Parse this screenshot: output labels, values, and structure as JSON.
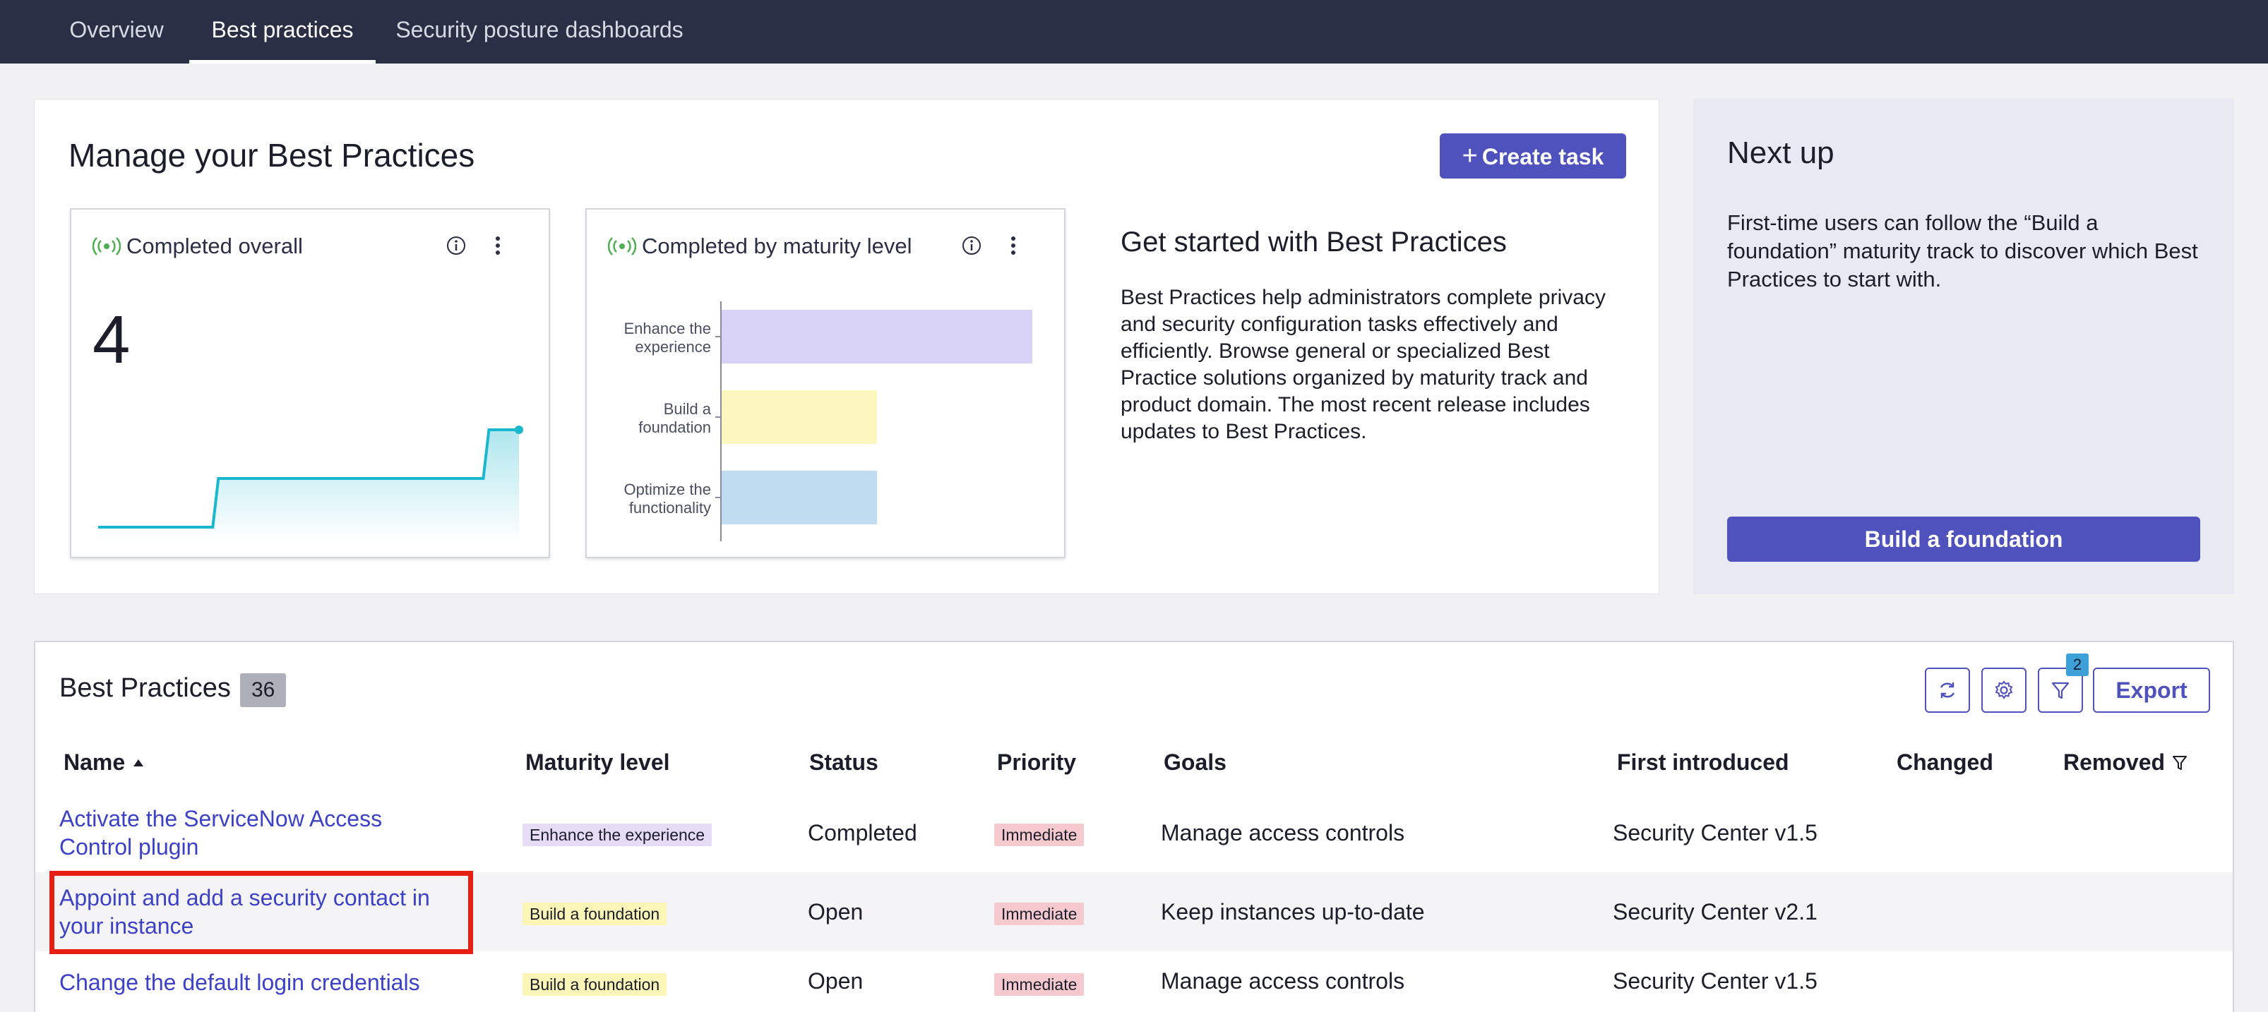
{
  "top_tabs": [
    {
      "label": "Overview",
      "active": false
    },
    {
      "label": "Best practices",
      "active": true
    },
    {
      "label": "Security posture dashboards",
      "active": false
    }
  ],
  "manage": {
    "title": "Manage your Best Practices",
    "create_task_label": "Create task",
    "create_task_icon": "plus-icon"
  },
  "completed_overall": {
    "title": "Completed overall",
    "value": "4",
    "sparkline": [
      0,
      0,
      0,
      0,
      1,
      1,
      1,
      1,
      1,
      1,
      1,
      1,
      1,
      2,
      2
    ],
    "color": "#1ab8cf"
  },
  "maturity_chart": {
    "title": "Completed by maturity level"
  },
  "chart_data": {
    "type": "bar",
    "orientation": "horizontal",
    "title": "Completed by maturity level",
    "categories": [
      "Enhance the experience",
      "Build a foundation",
      "Optimize the functionality"
    ],
    "category_lines": [
      [
        "Enhance the",
        "experience"
      ],
      [
        "Build a",
        "foundation"
      ],
      [
        "Optimize the",
        "functionality"
      ]
    ],
    "values": [
      2,
      1,
      1
    ],
    "colors": [
      "#d8d2f6",
      "#fcf6bf",
      "#bfdcf0"
    ],
    "xlim": [
      0,
      2
    ],
    "grid": false
  },
  "get_started": {
    "title": "Get started with Best Practices",
    "body": "Best Practices help administrators complete privacy and security configuration tasks effectively and efficiently. Browse general or specialized Best Practice solutions organized by maturity track and product domain. The most recent release includes updates to Best Practices."
  },
  "next_up": {
    "title": "Next up",
    "body": "First-time users can follow the “Build a foundation” maturity track to discover which Best Practices to start with.",
    "button_label": "Build a foundation"
  },
  "list": {
    "title": "Best Practices",
    "count": "36",
    "filter_count": "2",
    "export_label": "Export",
    "columns": {
      "name": "Name",
      "maturity": "Maturity level",
      "status": "Status",
      "priority": "Priority",
      "goals": "Goals",
      "first_introduced": "First introduced",
      "changed": "Changed",
      "removed": "Removed"
    },
    "rows": [
      {
        "name": "Activate the ServiceNow Access Control plugin",
        "maturity": "Enhance the experience",
        "status": "Completed",
        "priority": "Immediate",
        "goals": "Manage access controls",
        "first_introduced": "Security Center v1.5",
        "changed": "",
        "removed": ""
      },
      {
        "name": "Appoint and add a security contact in your instance",
        "maturity": "Build a foundation",
        "status": "Open",
        "priority": "Immediate",
        "goals": "Keep instances up-to-date",
        "first_introduced": "Security Center v2.1",
        "changed": "",
        "removed": ""
      },
      {
        "name": "Change the default login credentials",
        "maturity": "Build a foundation",
        "status": "Open",
        "priority": "Immediate",
        "goals": "Manage access controls",
        "first_introduced": "Security Center v1.5",
        "changed": "",
        "removed": ""
      }
    ]
  },
  "colors": {
    "topbar": "#2b2f45",
    "primary": "#4f52bd",
    "link": "#3c41c7",
    "highlight": "#e61e14"
  }
}
